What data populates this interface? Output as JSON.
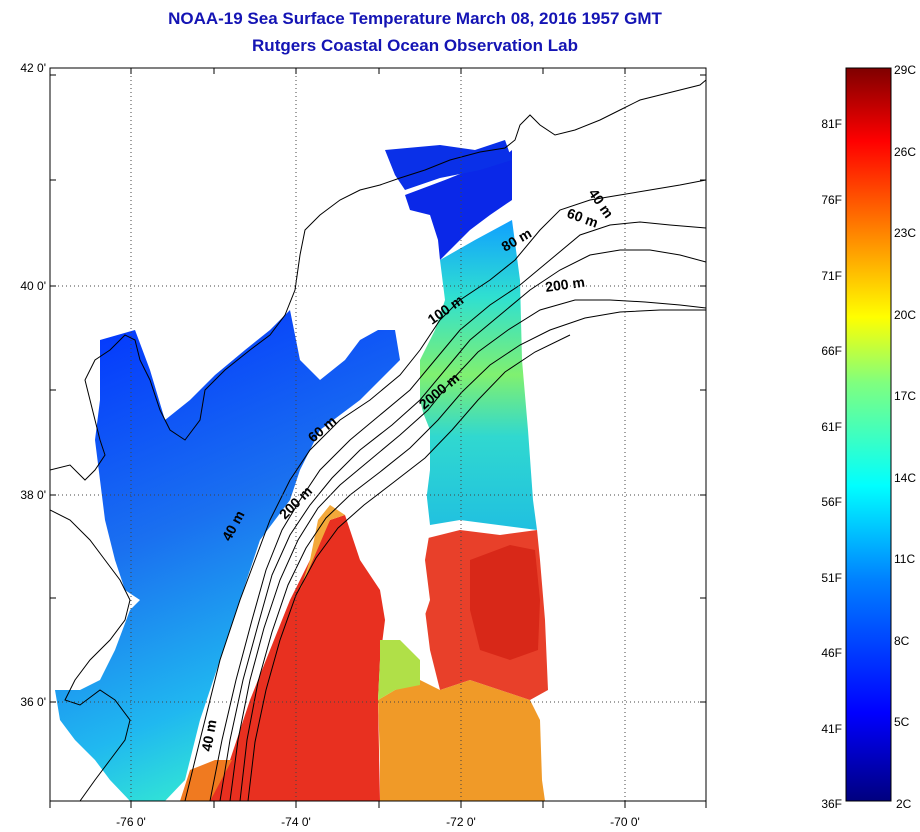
{
  "header": {
    "title": "NOAA-19 Sea Surface Temperature March 08, 2016 1957 GMT",
    "subtitle": "Rutgers Coastal Ocean Observation Lab"
  },
  "map": {
    "lat_labels": [
      "42 0'",
      "40 0'",
      "38 0'",
      "36 0'"
    ],
    "lon_labels": [
      "-76 0'",
      "-74 0'",
      "-72 0'",
      "-70 0'"
    ],
    "contour_labels": [
      "40 m",
      "60 m",
      "80 m",
      "200 m",
      "100 m",
      "2000 m",
      "60 m",
      "200 m",
      "40 m",
      "40 m"
    ]
  },
  "colorbar": {
    "fahrenheit_labels": [
      "81F",
      "76F",
      "71F",
      "66F",
      "61F",
      "56F",
      "51F",
      "46F",
      "41F",
      "36F"
    ],
    "celsius_labels": [
      "29C",
      "26C",
      "23C",
      "20C",
      "17C",
      "14C",
      "11C",
      "8C",
      "5C",
      "2C"
    ],
    "colors": [
      "#00007f",
      "#0000ff",
      "#007fff",
      "#00ffff",
      "#7fff7f",
      "#ffff00",
      "#ff7f00",
      "#ff0000",
      "#7f0000"
    ]
  }
}
